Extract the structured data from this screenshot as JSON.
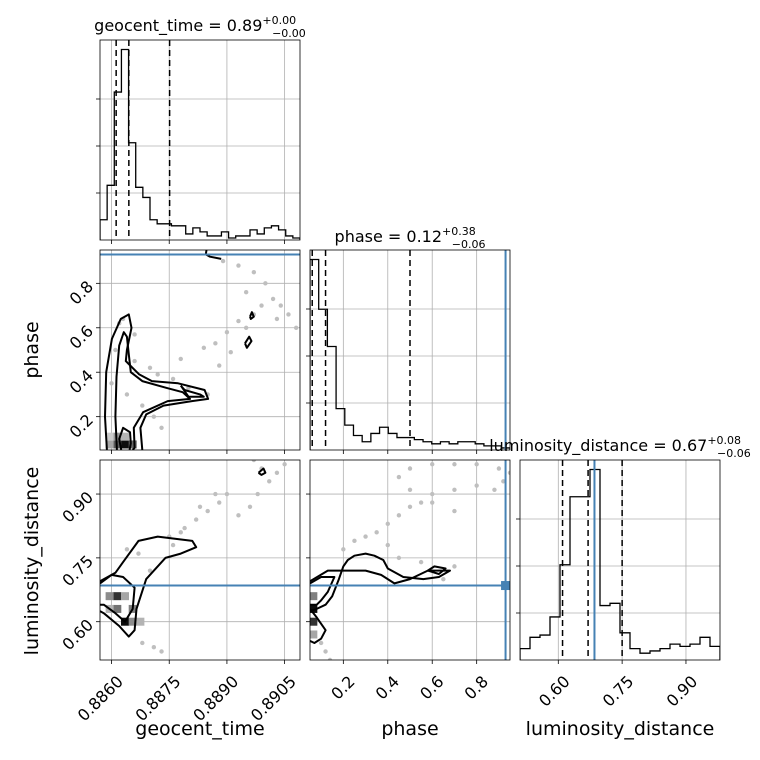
{
  "chart_data": {
    "type": "corner",
    "parameters": [
      "geocent_time",
      "phase",
      "luminosity_distance"
    ],
    "titles": [
      {
        "parameter": "geocent_time",
        "text": "geocent_time = 0.89",
        "plus": "+0.00",
        "minus": "−0.00"
      },
      {
        "parameter": "phase",
        "text": "phase = 0.12",
        "plus": "+0.38",
        "minus": "−0.06"
      },
      {
        "parameter": "luminosity_distance",
        "text": "luminosity_distance = 0.67",
        "plus": "+0.08",
        "minus": "−0.06"
      }
    ],
    "axis_labels": {
      "geocent_time": "geocent_time",
      "phase": "phase",
      "luminosity_distance": "luminosity_distance"
    },
    "ranges": {
      "geocent_time": [
        0.8857,
        0.8909
      ],
      "phase": [
        0.05,
        0.95
      ],
      "luminosity_distance": [
        0.51,
        0.98
      ]
    },
    "ticks": {
      "geocent_time": [
        "0.8860",
        "0.8875",
        "0.8890",
        "0.8905"
      ],
      "phase": [
        "0.2",
        "0.4",
        "0.6",
        "0.8"
      ],
      "luminosity_distance": [
        "0.60",
        "0.75",
        "0.90"
      ]
    },
    "truths": {
      "geocent_time": null,
      "phase": 0.93,
      "luminosity_distance": 0.685
    },
    "quantiles": {
      "geocent_time": [
        0.88612,
        0.88645,
        0.88751
      ],
      "phase": [
        0.06,
        0.12,
        0.5
      ],
      "luminosity_distance": [
        0.61,
        0.67,
        0.75
      ]
    },
    "histograms": {
      "geocent_time": {
        "min": 0.8857,
        "max": 0.8909,
        "counts": [
          0.1,
          0.27,
          0.73,
          0.94,
          0.48,
          0.26,
          0.21,
          0.1,
          0.08,
          0.08,
          0.07,
          0.07,
          0.03,
          0.06,
          0.04,
          0.02,
          0.02,
          0.04,
          0.01,
          0.02,
          0.02,
          0.05,
          0.03,
          0.06,
          0.07,
          0.05,
          0.02,
          0.01
        ]
      },
      "phase": {
        "min": 0.05,
        "max": 0.95,
        "counts": [
          0.92,
          0.68,
          0.5,
          0.2,
          0.12,
          0.07,
          0.04,
          0.08,
          0.11,
          0.08,
          0.06,
          0.06,
          0.05,
          0.04,
          0.03,
          0.04,
          0.03,
          0.04,
          0.04,
          0.03,
          0.02,
          0.02,
          0.01
        ]
      },
      "luminosity_distance": {
        "min": 0.51,
        "max": 0.98,
        "counts": [
          0.05,
          0.1,
          0.11,
          0.19,
          0.42,
          0.72,
          0.72,
          0.84,
          0.24,
          0.25,
          0.12,
          0.05,
          0.03,
          0.04,
          0.05,
          0.07,
          0.06,
          0.07,
          0.1,
          0.06
        ]
      }
    },
    "contours": {
      "phase_vs_geocent_time": [
        [
          [
            0.88588,
            0.051
          ],
          [
            0.88583,
            0.2
          ],
          [
            0.88586,
            0.4
          ],
          [
            0.88601,
            0.55
          ],
          [
            0.88624,
            0.64
          ],
          [
            0.88645,
            0.66
          ],
          [
            0.88652,
            0.6
          ],
          [
            0.8864,
            0.5
          ],
          [
            0.88637,
            0.45
          ],
          [
            0.88672,
            0.39
          ],
          [
            0.88705,
            0.36
          ],
          [
            0.88773,
            0.35
          ],
          [
            0.88842,
            0.32
          ],
          [
            0.88851,
            0.28
          ],
          [
            0.88809,
            0.27
          ],
          [
            0.88735,
            0.25
          ],
          [
            0.8869,
            0.21
          ],
          [
            0.88675,
            0.15
          ],
          [
            0.8868,
            0.05
          ]
        ],
        [
          [
            0.88614,
            0.051
          ],
          [
            0.8861,
            0.2
          ],
          [
            0.88613,
            0.38
          ],
          [
            0.8862,
            0.52
          ],
          [
            0.88632,
            0.58
          ],
          [
            0.8864,
            0.56
          ],
          [
            0.88645,
            0.48
          ],
          [
            0.8865,
            0.4
          ],
          [
            0.8868,
            0.36
          ],
          [
            0.88742,
            0.33
          ],
          [
            0.88785,
            0.31
          ],
          [
            0.88804,
            0.28
          ],
          [
            0.88746,
            0.27
          ],
          [
            0.88682,
            0.22
          ],
          [
            0.88658,
            0.15
          ],
          [
            0.8866,
            0.06
          ],
          [
            0.88655,
            0.051
          ]
        ],
        [
          [
            0.88625,
            0.051
          ],
          [
            0.8862,
            0.1
          ],
          [
            0.8863,
            0.15
          ],
          [
            0.88648,
            0.13
          ],
          [
            0.8865,
            0.08
          ],
          [
            0.88647,
            0.051
          ]
        ],
        [
          [
            0.8878,
            0.34
          ],
          [
            0.8879,
            0.32
          ],
          [
            0.8883,
            0.3
          ],
          [
            0.8884,
            0.29
          ],
          [
            0.888,
            0.29
          ],
          [
            0.8878,
            0.34
          ]
        ],
        [
          [
            0.88947,
            0.53
          ],
          [
            0.88958,
            0.56
          ],
          [
            0.88964,
            0.54
          ],
          [
            0.88952,
            0.51
          ],
          [
            0.88947,
            0.53
          ]
        ],
        [
          [
            0.8896,
            0.65
          ],
          [
            0.88965,
            0.67
          ],
          [
            0.8897,
            0.65
          ],
          [
            0.88962,
            0.64
          ],
          [
            0.8896,
            0.65
          ]
        ],
        [
          [
            0.88847,
            0.95
          ],
          [
            0.88845,
            0.93
          ],
          [
            0.88856,
            0.92
          ],
          [
            0.88885,
            0.91
          ]
        ]
      ],
      "luminosity_distance_vs_geocent_time": [
        [
          [
            0.8857,
            0.695
          ],
          [
            0.8861,
            0.715
          ],
          [
            0.8863,
            0.74
          ],
          [
            0.8867,
            0.79
          ],
          [
            0.8872,
            0.8
          ],
          [
            0.8881,
            0.79
          ],
          [
            0.8882,
            0.775
          ],
          [
            0.8878,
            0.76
          ],
          [
            0.8874,
            0.75
          ],
          [
            0.8869,
            0.7
          ],
          [
            0.88665,
            0.63
          ],
          [
            0.8866,
            0.58
          ],
          [
            0.88645,
            0.565
          ],
          [
            0.8862,
            0.59
          ],
          [
            0.8858,
            0.62
          ],
          [
            0.8857,
            0.625
          ]
        ],
        [
          [
            0.8857,
            0.69
          ],
          [
            0.886,
            0.71
          ],
          [
            0.8863,
            0.705
          ],
          [
            0.8866,
            0.68
          ],
          [
            0.88655,
            0.63
          ],
          [
            0.88635,
            0.6
          ],
          [
            0.8861,
            0.62
          ],
          [
            0.8858,
            0.64
          ],
          [
            0.8857,
            0.64
          ]
        ],
        [
          [
            0.88982,
            0.95
          ],
          [
            0.88995,
            0.96
          ],
          [
            0.89,
            0.95
          ],
          [
            0.8899,
            0.945
          ],
          [
            0.88982,
            0.95
          ]
        ]
      ],
      "luminosity_distance_vs_phase": [
        [
          [
            0.05,
            0.695
          ],
          [
            0.13,
            0.72
          ],
          [
            0.2,
            0.72
          ],
          [
            0.3,
            0.72
          ],
          [
            0.37,
            0.71
          ],
          [
            0.43,
            0.69
          ],
          [
            0.5,
            0.7
          ],
          [
            0.58,
            0.72
          ],
          [
            0.68,
            0.72
          ],
          [
            0.63,
            0.705
          ],
          [
            0.56,
            0.7
          ],
          [
            0.47,
            0.705
          ],
          [
            0.4,
            0.725
          ],
          [
            0.38,
            0.745
          ],
          [
            0.34,
            0.755
          ],
          [
            0.3,
            0.76
          ],
          [
            0.25,
            0.755
          ],
          [
            0.22,
            0.745
          ],
          [
            0.2,
            0.73
          ],
          [
            0.18,
            0.7
          ],
          [
            0.15,
            0.66
          ],
          [
            0.12,
            0.64
          ],
          [
            0.08,
            0.63
          ],
          [
            0.05,
            0.625
          ]
        ],
        [
          [
            0.05,
            0.69
          ],
          [
            0.1,
            0.705
          ],
          [
            0.16,
            0.705
          ],
          [
            0.13,
            0.67
          ],
          [
            0.1,
            0.65
          ],
          [
            0.08,
            0.64
          ],
          [
            0.05,
            0.64
          ]
        ],
        [
          [
            0.05,
            0.63
          ],
          [
            0.08,
            0.61
          ],
          [
            0.12,
            0.58
          ],
          [
            0.1,
            0.56
          ],
          [
            0.07,
            0.55
          ],
          [
            0.05,
            0.555
          ]
        ],
        [
          [
            0.58,
            0.72
          ],
          [
            0.61,
            0.73
          ],
          [
            0.66,
            0.725
          ],
          [
            0.63,
            0.712
          ],
          [
            0.58,
            0.72
          ]
        ]
      ]
    },
    "density_blocks": {
      "phase_vs_geocent_time": [
        {
          "x": 0.88635,
          "y": 0.075,
          "level": 0.95
        },
        {
          "x": 0.88615,
          "y": 0.075,
          "level": 0.65
        },
        {
          "x": 0.88655,
          "y": 0.075,
          "level": 0.6
        },
        {
          "x": 0.88595,
          "y": 0.075,
          "level": 0.35
        },
        {
          "x": 0.88615,
          "y": 0.11,
          "level": 0.4
        },
        {
          "x": 0.88635,
          "y": 0.11,
          "level": 0.3
        },
        {
          "x": 0.88595,
          "y": 0.11,
          "level": 0.2
        }
      ],
      "luminosity_distance_vs_geocent_time": [
        {
          "x": 0.88635,
          "y": 0.6,
          "level": 0.95
        },
        {
          "x": 0.88615,
          "y": 0.66,
          "level": 0.8
        },
        {
          "x": 0.88615,
          "y": 0.63,
          "level": 0.55
        },
        {
          "x": 0.88595,
          "y": 0.66,
          "level": 0.45
        },
        {
          "x": 0.88655,
          "y": 0.63,
          "level": 0.5
        },
        {
          "x": 0.88595,
          "y": 0.63,
          "level": 0.3
        },
        {
          "x": 0.88635,
          "y": 0.66,
          "level": 0.35
        },
        {
          "x": 0.88655,
          "y": 0.6,
          "level": 0.45
        },
        {
          "x": 0.88675,
          "y": 0.6,
          "level": 0.3
        }
      ],
      "luminosity_distance_vs_phase": [
        {
          "x": 0.065,
          "y": 0.63,
          "level": 0.95
        },
        {
          "x": 0.065,
          "y": 0.6,
          "level": 0.8
        },
        {
          "x": 0.065,
          "y": 0.66,
          "level": 0.5
        },
        {
          "x": 0.065,
          "y": 0.57,
          "level": 0.35
        }
      ]
    },
    "scatter_density_level": 0.25,
    "point_clouds": {
      "phase_vs_geocent_time": [
        [
          0.8862,
          0.62
        ],
        [
          0.8863,
          0.64
        ],
        [
          0.8866,
          0.57
        ],
        [
          0.887,
          0.42
        ],
        [
          0.8872,
          0.39
        ],
        [
          0.8876,
          0.37
        ],
        [
          0.888,
          0.33
        ],
        [
          0.8885,
          0.3
        ],
        [
          0.8888,
          0.43
        ],
        [
          0.8891,
          0.49
        ],
        [
          0.8893,
          0.63
        ],
        [
          0.8895,
          0.6
        ],
        [
          0.8897,
          0.66
        ],
        [
          0.8899,
          0.7
        ],
        [
          0.8902,
          0.73
        ],
        [
          0.8904,
          0.7
        ],
        [
          0.8906,
          0.66
        ],
        [
          0.8908,
          0.6
        ],
        [
          0.89,
          0.8
        ],
        [
          0.8897,
          0.85
        ],
        [
          0.8893,
          0.88
        ],
        [
          0.8889,
          0.9
        ],
        [
          0.8895,
          0.76
        ],
        [
          0.886,
          0.35
        ],
        [
          0.8864,
          0.3
        ],
        [
          0.8868,
          0.25
        ],
        [
          0.8871,
          0.2
        ],
        [
          0.8873,
          0.15
        ],
        [
          0.8866,
          0.45
        ],
        [
          0.8861,
          0.5
        ],
        [
          0.8884,
          0.51
        ],
        [
          0.8887,
          0.53
        ],
        [
          0.8878,
          0.46
        ],
        [
          0.889,
          0.58
        ],
        [
          0.8903,
          0.64
        ]
      ],
      "luminosity_distance_vs_geocent_time": [
        [
          0.8871,
          0.54
        ],
        [
          0.8873,
          0.53
        ],
        [
          0.8868,
          0.55
        ],
        [
          0.8875,
          0.8
        ],
        [
          0.8878,
          0.81
        ],
        [
          0.8882,
          0.84
        ],
        [
          0.8885,
          0.86
        ],
        [
          0.8888,
          0.88
        ],
        [
          0.889,
          0.9
        ],
        [
          0.8893,
          0.85
        ],
        [
          0.8896,
          0.87
        ],
        [
          0.8898,
          0.9
        ],
        [
          0.8901,
          0.93
        ],
        [
          0.8903,
          0.95
        ],
        [
          0.8905,
          0.97
        ],
        [
          0.8899,
          0.96
        ],
        [
          0.8897,
          0.98
        ],
        [
          0.8887,
          0.9
        ],
        [
          0.8883,
          0.87
        ],
        [
          0.8879,
          0.82
        ],
        [
          0.8876,
          0.78
        ],
        [
          0.8867,
          0.76
        ],
        [
          0.8864,
          0.77
        ],
        [
          0.887,
          0.72
        ]
      ],
      "luminosity_distance_vs_phase": [
        [
          0.1,
          0.55
        ],
        [
          0.12,
          0.53
        ],
        [
          0.14,
          0.51
        ],
        [
          0.2,
          0.77
        ],
        [
          0.25,
          0.79
        ],
        [
          0.3,
          0.8
        ],
        [
          0.35,
          0.81
        ],
        [
          0.4,
          0.83
        ],
        [
          0.45,
          0.85
        ],
        [
          0.5,
          0.87
        ],
        [
          0.55,
          0.88
        ],
        [
          0.6,
          0.9
        ],
        [
          0.7,
          0.91
        ],
        [
          0.8,
          0.92
        ],
        [
          0.88,
          0.91
        ],
        [
          0.92,
          0.93
        ],
        [
          0.95,
          0.95
        ],
        [
          0.9,
          0.96
        ],
        [
          0.8,
          0.97
        ],
        [
          0.7,
          0.97
        ],
        [
          0.6,
          0.97
        ],
        [
          0.5,
          0.96
        ],
        [
          0.45,
          0.94
        ],
        [
          0.5,
          0.91
        ],
        [
          0.6,
          0.88
        ],
        [
          0.7,
          0.86
        ],
        [
          0.4,
          0.78
        ],
        [
          0.45,
          0.75
        ],
        [
          0.55,
          0.74
        ],
        [
          0.7,
          0.73
        ],
        [
          0.65,
          0.7
        ]
      ]
    }
  }
}
